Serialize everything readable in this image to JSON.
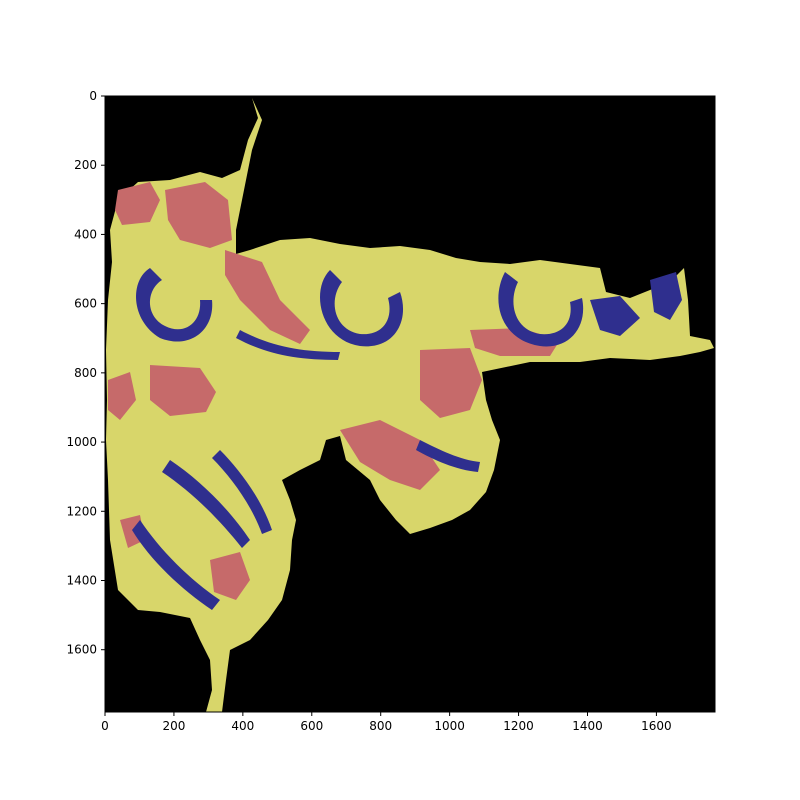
{
  "chart_data": {
    "type": "heatmap",
    "title": "",
    "xlabel": "",
    "ylabel": "",
    "xlim": [
      0,
      1770
    ],
    "ylim": [
      1780,
      0
    ],
    "y_inverted": true,
    "grid": false,
    "legend": "none",
    "xticks": [
      0,
      200,
      400,
      600,
      800,
      1000,
      1200,
      1400,
      1600
    ],
    "yticks": [
      0,
      200,
      400,
      600,
      800,
      1000,
      1200,
      1400,
      1600
    ],
    "xtick_labels": [
      "0",
      "200",
      "400",
      "600",
      "800",
      "1000",
      "1200",
      "1400",
      "1600"
    ],
    "ytick_labels": [
      "0",
      "200",
      "400",
      "600",
      "800",
      "1000",
      "1200",
      "1400",
      "1600"
    ],
    "image": {
      "description": "segmentation overlay on tissue section",
      "background_color": "#000000",
      "classes": [
        {
          "color": "#d8d66a"
        },
        {
          "color": "#c66a6a"
        },
        {
          "color": "#2f2f8e"
        }
      ]
    }
  }
}
